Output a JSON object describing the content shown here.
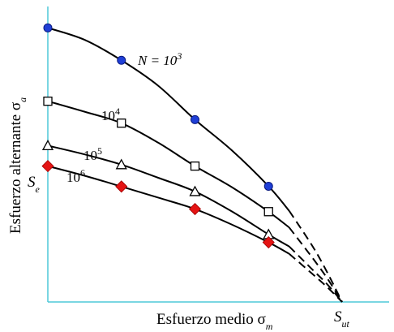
{
  "chart_data": {
    "type": "line",
    "title": "",
    "xlabel": "Esfuerzo medio σm",
    "ylabel": "Esfuerzo alternante σa",
    "x_ticks": [
      "Sut"
    ],
    "y_ticks": [
      "Se"
    ],
    "xlim": [
      0,
      1
    ],
    "ylim": [
      0,
      1
    ],
    "series_labels": [
      "N = 10^3",
      "10^4",
      "10^5",
      "10^6"
    ],
    "series": [
      {
        "name": "N = 10^3",
        "marker": "circle",
        "color": "#1f3fd6",
        "x": [
          0.0,
          0.25,
          0.5,
          0.75
        ],
        "y": [
          0.938,
          0.827,
          0.624,
          0.396
        ],
        "curve_solid": [
          [
            0,
            0.938
          ],
          [
            0.125,
            0.897
          ],
          [
            0.25,
            0.827
          ],
          [
            0.375,
            0.74
          ],
          [
            0.5,
            0.624
          ],
          [
            0.625,
            0.519
          ],
          [
            0.75,
            0.396
          ],
          [
            0.82,
            0.312
          ]
        ],
        "curve_dashed": [
          [
            0.82,
            0.312
          ],
          [
            0.9,
            0.19
          ],
          [
            0.95,
            0.1
          ],
          [
            1.0,
            0.0
          ]
        ]
      },
      {
        "name": "10^4",
        "marker": "square",
        "color": "#ffffff",
        "x": [
          0.0,
          0.25,
          0.5,
          0.75
        ],
        "y": [
          0.687,
          0.612,
          0.465,
          0.309
        ],
        "curve_solid": [
          [
            0,
            0.687
          ],
          [
            0.125,
            0.651
          ],
          [
            0.25,
            0.612
          ],
          [
            0.375,
            0.545
          ],
          [
            0.5,
            0.465
          ],
          [
            0.625,
            0.393
          ],
          [
            0.75,
            0.309
          ],
          [
            0.82,
            0.255
          ]
        ],
        "curve_dashed": [
          [
            0.82,
            0.255
          ],
          [
            0.9,
            0.15
          ],
          [
            0.95,
            0.08
          ],
          [
            1.0,
            0.0
          ]
        ]
      },
      {
        "name": "10^5",
        "marker": "triangle",
        "color": "#ffffff",
        "x": [
          0.0,
          0.25,
          0.5,
          0.75
        ],
        "y": [
          0.535,
          0.47,
          0.378,
          0.231
        ],
        "curve_solid": [
          [
            0,
            0.535
          ],
          [
            0.125,
            0.505
          ],
          [
            0.25,
            0.47
          ],
          [
            0.375,
            0.425
          ],
          [
            0.5,
            0.378
          ],
          [
            0.625,
            0.31
          ],
          [
            0.75,
            0.231
          ],
          [
            0.82,
            0.19
          ]
        ],
        "curve_dashed": [
          [
            0.82,
            0.19
          ],
          [
            0.9,
            0.11
          ],
          [
            0.95,
            0.06
          ],
          [
            1.0,
            0.0
          ]
        ]
      },
      {
        "name": "10^6",
        "marker": "diamond",
        "color": "#e41414",
        "x": [
          0.0,
          0.25,
          0.5,
          0.75
        ],
        "y": [
          0.465,
          0.395,
          0.318,
          0.204
        ],
        "curve_solid": [
          [
            0,
            0.465
          ],
          [
            0.125,
            0.432
          ],
          [
            0.25,
            0.395
          ],
          [
            0.375,
            0.357
          ],
          [
            0.5,
            0.318
          ],
          [
            0.625,
            0.265
          ],
          [
            0.75,
            0.204
          ],
          [
            0.82,
            0.165
          ]
        ],
        "curve_dashed": [
          [
            0.82,
            0.165
          ],
          [
            0.9,
            0.095
          ],
          [
            0.95,
            0.05
          ],
          [
            1.0,
            0.0
          ]
        ]
      }
    ],
    "grid": false,
    "legend": "none"
  }
}
